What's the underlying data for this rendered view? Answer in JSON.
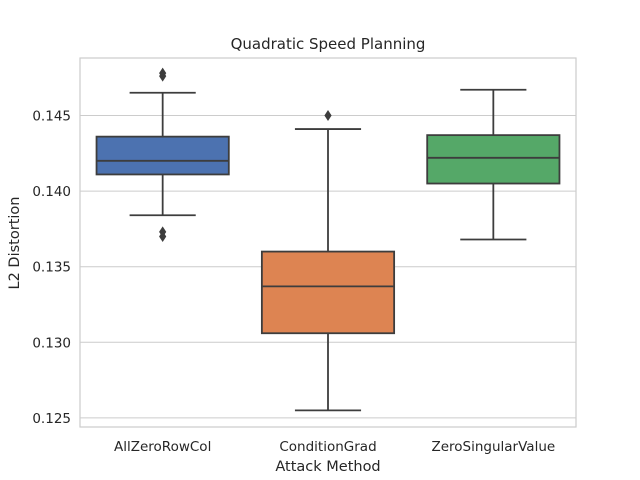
{
  "chart_data": {
    "type": "box",
    "title": "Quadratic Speed Planning",
    "xlabel": "Attack Method",
    "ylabel": "L2 Distortion",
    "ylim": [
      0.1244,
      0.1488
    ],
    "yticks": [
      0.125,
      0.13,
      0.135,
      0.14,
      0.145
    ],
    "ytick_labels": [
      "0.125",
      "0.130",
      "0.135",
      "0.140",
      "0.145"
    ],
    "grid": true,
    "categories": [
      "AllZeroRowCol",
      "ConditionGrad",
      "ZeroSingularValue"
    ],
    "series": [
      {
        "category": "AllZeroRowCol",
        "color": "#4c72b0",
        "whisker_low": 0.1384,
        "q1": 0.1411,
        "median": 0.142,
        "q3": 0.1436,
        "whisker_high": 0.1465,
        "outliers": [
          0.1478,
          0.1476,
          0.1373,
          0.137
        ]
      },
      {
        "category": "ConditionGrad",
        "color": "#dd8452",
        "whisker_low": 0.1255,
        "q1": 0.1306,
        "median": 0.1337,
        "q3": 0.136,
        "whisker_high": 0.1441,
        "outliers": [
          0.145
        ]
      },
      {
        "category": "ZeroSingularValue",
        "color": "#55a868",
        "whisker_low": 0.1368,
        "q1": 0.1405,
        "median": 0.1422,
        "q3": 0.1437,
        "whisker_high": 0.1467,
        "outliers": []
      }
    ]
  }
}
